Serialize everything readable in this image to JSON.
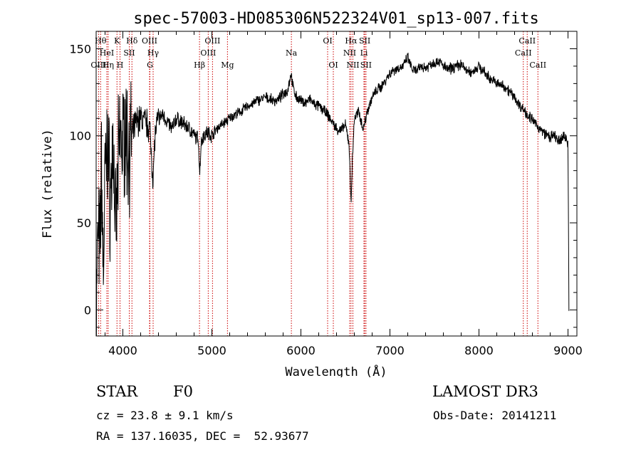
{
  "chart_data": {
    "type": "line",
    "title": "spec-57003-HD085306N522324V01_sp13-007.fits",
    "xlabel": "Wavelength (Å)",
    "ylabel": "Flux (relative)",
    "xlim": [
      3700,
      9100
    ],
    "ylim": [
      -15,
      160
    ],
    "xticks": [
      4000,
      5000,
      6000,
      7000,
      8000,
      9000
    ],
    "yticks": [
      0,
      50,
      100,
      150
    ],
    "series": [
      {
        "x": [
          3700,
          3720,
          3740,
          3760,
          3780,
          3800,
          3830,
          3860,
          3890,
          3920,
          3950,
          3970,
          4000,
          4030,
          4060,
          4100,
          4150,
          4200,
          4250,
          4300,
          4340,
          4360,
          4400,
          4450,
          4500,
          4550,
          4600,
          4650,
          4700,
          4750,
          4800,
          4850,
          4861,
          4880,
          4900,
          4950,
          5000,
          5050,
          5100,
          5150,
          5200,
          5250,
          5300,
          5350,
          5400,
          5450,
          5500,
          5550,
          5600,
          5650,
          5700,
          5750,
          5800,
          5850,
          5890,
          5910,
          5950,
          6000,
          6050,
          6100,
          6150,
          6200,
          6250,
          6300,
          6350,
          6400,
          6450,
          6500,
          6540,
          6563,
          6580,
          6600,
          6650,
          6700,
          6750,
          6800,
          6850,
          6900,
          6950,
          7000,
          7050,
          7100,
          7150,
          7200,
          7250,
          7300,
          7350,
          7400,
          7450,
          7500,
          7550,
          7600,
          7650,
          7700,
          7750,
          7800,
          7850,
          7900,
          7950,
          8000,
          8050,
          8100,
          8150,
          8200,
          8250,
          8300,
          8350,
          8400,
          8450,
          8500,
          8550,
          8600,
          8650,
          8700,
          8750,
          8800,
          8850,
          8900,
          8950,
          9000,
          9005,
          9010
        ],
        "values": [
          -5,
          45,
          30,
          85,
          20,
          75,
          95,
          60,
          100,
          40,
          85,
          100,
          95,
          105,
          90,
          100,
          108,
          110,
          108,
          105,
          75,
          100,
          110,
          112,
          108,
          104,
          110,
          108,
          106,
          104,
          100,
          98,
          78,
          96,
          100,
          102,
          100,
          104,
          106,
          108,
          110,
          112,
          113,
          115,
          117,
          118,
          120,
          121,
          122,
          121,
          120,
          121,
          124,
          126,
          136,
          128,
          122,
          120,
          119,
          121,
          118,
          117,
          115,
          112,
          108,
          104,
          103,
          106,
          96,
          62,
          88,
          110,
          114,
          104,
          115,
          122,
          126,
          128,
          132,
          136,
          138,
          139,
          140,
          145,
          138,
          137,
          140,
          139,
          141,
          142,
          143,
          140,
          138,
          139,
          140,
          141,
          138,
          136,
          138,
          140,
          137,
          134,
          132,
          130,
          129,
          128,
          125,
          122,
          118,
          115,
          112,
          109,
          106,
          103,
          101,
          99,
          100,
          96,
          100,
          97,
          50,
          0
        ]
      }
    ],
    "lines": [
      {
        "label": "OIII",
        "x": 3727,
        "row": 3
      },
      {
        "label": "Hθ",
        "x": 3750,
        "row": 1
      },
      {
        "label": "HeI",
        "x": 3820,
        "row": 2
      },
      {
        "label": "Hη",
        "x": 3835,
        "row": 3
      },
      {
        "label": "K",
        "x": 3934,
        "row": 1
      },
      {
        "label": "H",
        "x": 3968,
        "row": 3
      },
      {
        "label": "SII",
        "x": 4072,
        "row": 2
      },
      {
        "label": "Hδ",
        "x": 4102,
        "row": 1
      },
      {
        "label": "OIII",
        "x": 4300,
        "row": 1
      },
      {
        "label": "G",
        "x": 4304,
        "row": 3
      },
      {
        "label": "Hγ",
        "x": 4340,
        "row": 2
      },
      {
        "label": "Hβ",
        "x": 4861,
        "row": 3
      },
      {
        "label": "OIII",
        "x": 4959,
        "row": 2
      },
      {
        "label": "OIII",
        "x": 5007,
        "row": 1
      },
      {
        "label": "Mg",
        "x": 5175,
        "row": 3
      },
      {
        "label": "Na",
        "x": 5893,
        "row": 2
      },
      {
        "label": "OI",
        "x": 6300,
        "row": 1
      },
      {
        "label": "OI",
        "x": 6364,
        "row": 3
      },
      {
        "label": "NII",
        "x": 6548,
        "row": 2
      },
      {
        "label": "Hα",
        "x": 6563,
        "row": 1
      },
      {
        "label": "NII",
        "x": 6584,
        "row": 3
      },
      {
        "label": "Li",
        "x": 6708,
        "row": 2
      },
      {
        "label": "SII",
        "x": 6717,
        "row": 1
      },
      {
        "label": "SII",
        "x": 6731,
        "row": 3
      },
      {
        "label": "CaII",
        "x": 8498,
        "row": 2
      },
      {
        "label": "CaII",
        "x": 8542,
        "row": 1
      },
      {
        "label": "CaII",
        "x": 8662,
        "row": 3
      }
    ]
  },
  "info": {
    "object_class": "STAR",
    "subclass": "F0",
    "cz": "cz = 23.8 ± 9.1 km/s",
    "coords": "RA = 137.16035, DEC =  52.93677",
    "survey": "LAMOST DR3",
    "obs_date": "Obs-Date: 20141211"
  },
  "colors": {
    "line_marker": "#cc0000",
    "spectrum": "#000000"
  }
}
